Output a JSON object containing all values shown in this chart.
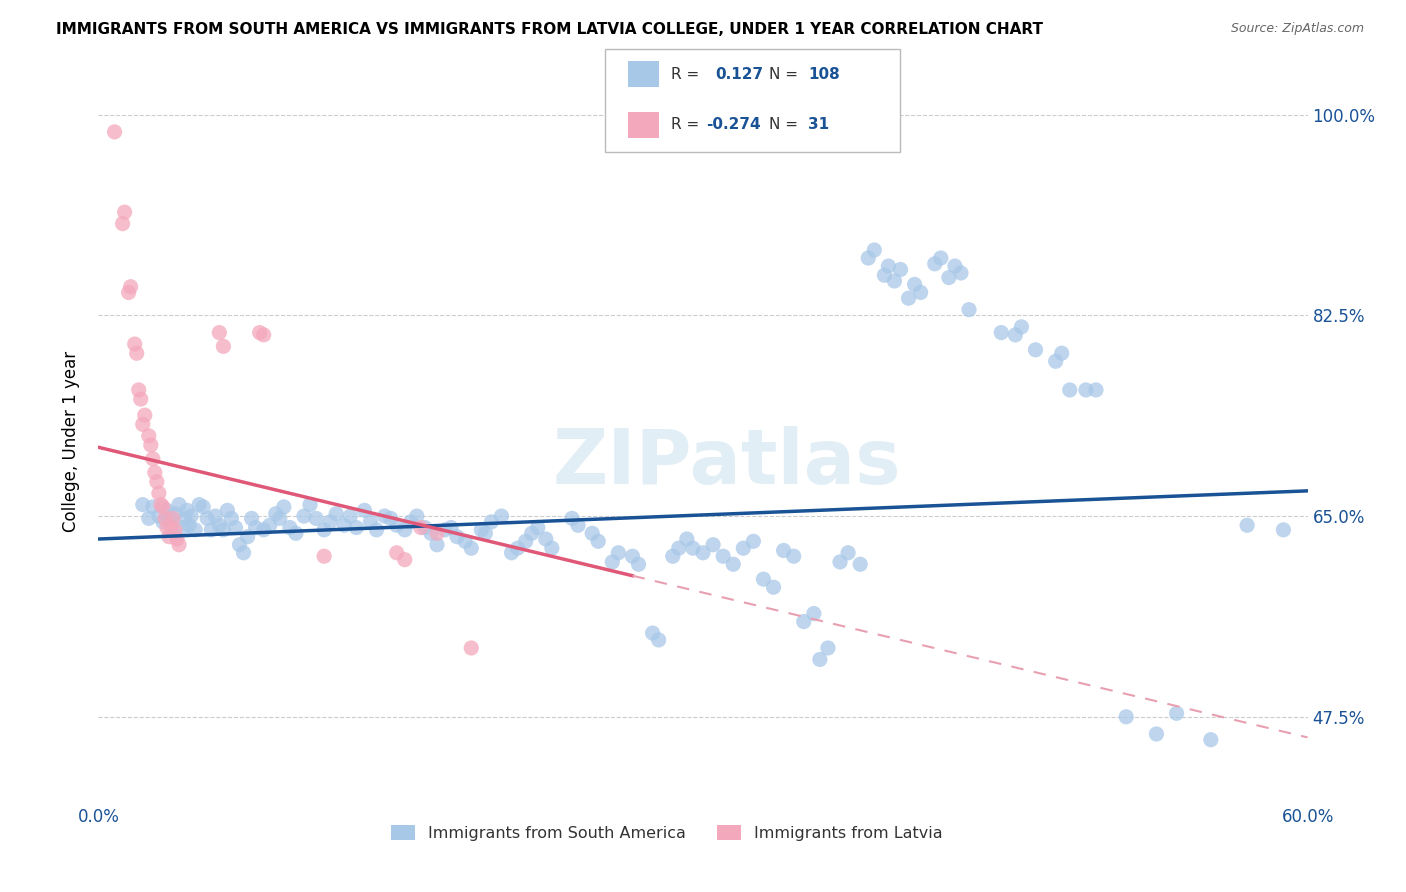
{
  "title": "IMMIGRANTS FROM SOUTH AMERICA VS IMMIGRANTS FROM LATVIA COLLEGE, UNDER 1 YEAR CORRELATION CHART",
  "source": "Source: ZipAtlas.com",
  "ylabel": "College, Under 1 year",
  "xlim": [
    0.0,
    0.6
  ],
  "ylim": [
    0.4,
    1.03
  ],
  "ytick_vals": [
    0.475,
    0.65,
    0.825,
    1.0
  ],
  "ytick_labels": [
    "47.5%",
    "65.0%",
    "82.5%",
    "100.0%"
  ],
  "xtick_vals": [
    0.0,
    0.1,
    0.2,
    0.3,
    0.4,
    0.5,
    0.6
  ],
  "xtick_labels": [
    "0.0%",
    "",
    "",
    "",
    "",
    "",
    "60.0%"
  ],
  "legend_blue_R": "0.127",
  "legend_blue_N": "108",
  "legend_pink_R": "-0.274",
  "legend_pink_N": "31",
  "blue_color": "#a8c8e8",
  "pink_color": "#f4a8bc",
  "trendline_blue_color": "#1a5296",
  "trendline_pink_solid_color": "#e05878",
  "trendline_pink_dash_color": "#e8a0b0",
  "watermark": "ZIPatlas",
  "blue_trendline": [
    [
      0.0,
      0.63
    ],
    [
      0.6,
      0.672
    ]
  ],
  "pink_trendline_solid": [
    [
      0.0,
      0.71
    ],
    [
      0.265,
      0.598
    ]
  ],
  "pink_trendline_dash": [
    [
      0.265,
      0.598
    ],
    [
      0.6,
      0.457
    ]
  ],
  "blue_scatter": [
    [
      0.022,
      0.66
    ],
    [
      0.025,
      0.648
    ],
    [
      0.027,
      0.658
    ],
    [
      0.03,
      0.65
    ],
    [
      0.032,
      0.645
    ],
    [
      0.034,
      0.655
    ],
    [
      0.036,
      0.648
    ],
    [
      0.038,
      0.652
    ],
    [
      0.04,
      0.66
    ],
    [
      0.042,
      0.64
    ],
    [
      0.043,
      0.648
    ],
    [
      0.044,
      0.655
    ],
    [
      0.045,
      0.642
    ],
    [
      0.046,
      0.65
    ],
    [
      0.048,
      0.638
    ],
    [
      0.05,
      0.66
    ],
    [
      0.052,
      0.658
    ],
    [
      0.054,
      0.648
    ],
    [
      0.056,
      0.638
    ],
    [
      0.058,
      0.65
    ],
    [
      0.06,
      0.642
    ],
    [
      0.062,
      0.638
    ],
    [
      0.064,
      0.655
    ],
    [
      0.066,
      0.648
    ],
    [
      0.068,
      0.64
    ],
    [
      0.07,
      0.625
    ],
    [
      0.072,
      0.618
    ],
    [
      0.074,
      0.632
    ],
    [
      0.076,
      0.648
    ],
    [
      0.078,
      0.64
    ],
    [
      0.082,
      0.638
    ],
    [
      0.085,
      0.642
    ],
    [
      0.088,
      0.652
    ],
    [
      0.09,
      0.648
    ],
    [
      0.092,
      0.658
    ],
    [
      0.095,
      0.64
    ],
    [
      0.098,
      0.635
    ],
    [
      0.102,
      0.65
    ],
    [
      0.105,
      0.66
    ],
    [
      0.108,
      0.648
    ],
    [
      0.112,
      0.638
    ],
    [
      0.115,
      0.645
    ],
    [
      0.118,
      0.652
    ],
    [
      0.122,
      0.642
    ],
    [
      0.125,
      0.65
    ],
    [
      0.128,
      0.64
    ],
    [
      0.132,
      0.655
    ],
    [
      0.135,
      0.645
    ],
    [
      0.138,
      0.638
    ],
    [
      0.142,
      0.65
    ],
    [
      0.145,
      0.648
    ],
    [
      0.148,
      0.642
    ],
    [
      0.152,
      0.638
    ],
    [
      0.155,
      0.645
    ],
    [
      0.158,
      0.65
    ],
    [
      0.162,
      0.64
    ],
    [
      0.165,
      0.635
    ],
    [
      0.168,
      0.625
    ],
    [
      0.172,
      0.638
    ],
    [
      0.175,
      0.64
    ],
    [
      0.178,
      0.632
    ],
    [
      0.182,
      0.628
    ],
    [
      0.185,
      0.622
    ],
    [
      0.19,
      0.638
    ],
    [
      0.192,
      0.635
    ],
    [
      0.195,
      0.645
    ],
    [
      0.2,
      0.65
    ],
    [
      0.205,
      0.618
    ],
    [
      0.208,
      0.622
    ],
    [
      0.212,
      0.628
    ],
    [
      0.215,
      0.635
    ],
    [
      0.218,
      0.64
    ],
    [
      0.222,
      0.63
    ],
    [
      0.225,
      0.622
    ],
    [
      0.235,
      0.648
    ],
    [
      0.238,
      0.642
    ],
    [
      0.245,
      0.635
    ],
    [
      0.248,
      0.628
    ],
    [
      0.255,
      0.61
    ],
    [
      0.258,
      0.618
    ],
    [
      0.265,
      0.615
    ],
    [
      0.268,
      0.608
    ],
    [
      0.275,
      0.548
    ],
    [
      0.278,
      0.542
    ],
    [
      0.285,
      0.615
    ],
    [
      0.288,
      0.622
    ],
    [
      0.292,
      0.63
    ],
    [
      0.295,
      0.622
    ],
    [
      0.3,
      0.618
    ],
    [
      0.305,
      0.625
    ],
    [
      0.31,
      0.615
    ],
    [
      0.315,
      0.608
    ],
    [
      0.32,
      0.622
    ],
    [
      0.325,
      0.628
    ],
    [
      0.33,
      0.595
    ],
    [
      0.335,
      0.588
    ],
    [
      0.34,
      0.62
    ],
    [
      0.345,
      0.615
    ],
    [
      0.35,
      0.558
    ],
    [
      0.355,
      0.565
    ],
    [
      0.358,
      0.525
    ],
    [
      0.362,
      0.535
    ],
    [
      0.368,
      0.61
    ],
    [
      0.372,
      0.618
    ],
    [
      0.378,
      0.608
    ],
    [
      0.382,
      0.875
    ],
    [
      0.385,
      0.882
    ],
    [
      0.39,
      0.86
    ],
    [
      0.392,
      0.868
    ],
    [
      0.395,
      0.855
    ],
    [
      0.398,
      0.865
    ],
    [
      0.402,
      0.84
    ],
    [
      0.405,
      0.852
    ],
    [
      0.408,
      0.845
    ],
    [
      0.415,
      0.87
    ],
    [
      0.418,
      0.875
    ],
    [
      0.422,
      0.858
    ],
    [
      0.425,
      0.868
    ],
    [
      0.428,
      0.862
    ],
    [
      0.432,
      0.83
    ],
    [
      0.448,
      0.81
    ],
    [
      0.455,
      0.808
    ],
    [
      0.458,
      0.815
    ],
    [
      0.465,
      0.795
    ],
    [
      0.475,
      0.785
    ],
    [
      0.478,
      0.792
    ],
    [
      0.482,
      0.76
    ],
    [
      0.49,
      0.76
    ],
    [
      0.495,
      0.76
    ],
    [
      0.51,
      0.475
    ],
    [
      0.525,
      0.46
    ],
    [
      0.535,
      0.478
    ],
    [
      0.552,
      0.455
    ],
    [
      0.57,
      0.642
    ],
    [
      0.588,
      0.638
    ]
  ],
  "pink_scatter": [
    [
      0.008,
      0.985
    ],
    [
      0.012,
      0.905
    ],
    [
      0.013,
      0.915
    ],
    [
      0.015,
      0.845
    ],
    [
      0.016,
      0.85
    ],
    [
      0.018,
      0.8
    ],
    [
      0.019,
      0.792
    ],
    [
      0.02,
      0.76
    ],
    [
      0.021,
      0.752
    ],
    [
      0.022,
      0.73
    ],
    [
      0.023,
      0.738
    ],
    [
      0.025,
      0.72
    ],
    [
      0.026,
      0.712
    ],
    [
      0.027,
      0.7
    ],
    [
      0.028,
      0.688
    ],
    [
      0.029,
      0.68
    ],
    [
      0.03,
      0.67
    ],
    [
      0.031,
      0.66
    ],
    [
      0.032,
      0.658
    ],
    [
      0.033,
      0.648
    ],
    [
      0.034,
      0.64
    ],
    [
      0.035,
      0.632
    ],
    [
      0.036,
      0.64
    ],
    [
      0.037,
      0.648
    ],
    [
      0.038,
      0.638
    ],
    [
      0.039,
      0.63
    ],
    [
      0.04,
      0.625
    ],
    [
      0.06,
      0.81
    ],
    [
      0.062,
      0.798
    ],
    [
      0.08,
      0.81
    ],
    [
      0.082,
      0.808
    ],
    [
      0.112,
      0.615
    ],
    [
      0.148,
      0.618
    ],
    [
      0.152,
      0.612
    ],
    [
      0.16,
      0.64
    ],
    [
      0.168,
      0.635
    ],
    [
      0.185,
      0.535
    ]
  ]
}
